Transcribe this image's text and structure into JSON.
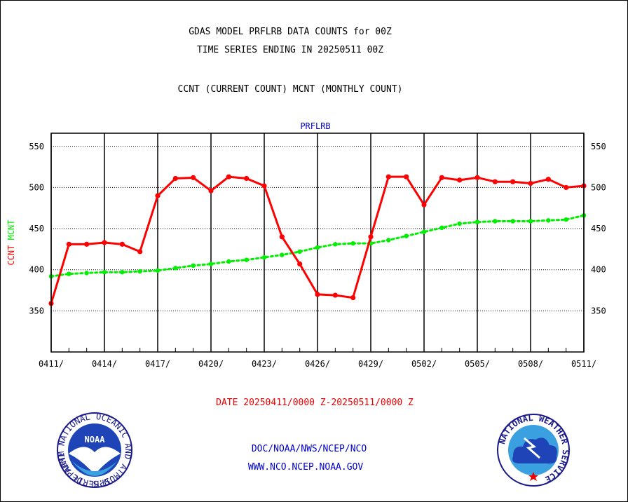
{
  "header": {
    "title_line1": "GDAS MODEL PRFLRB DATA COUNTS for 00Z",
    "title_line2": "TIME SERIES ENDING IN 20250511 00Z",
    "subtitle": "CCNT (CURRENT COUNT) MCNT (MONTHLY COUNT)"
  },
  "footer": {
    "date_range": "DATE 20250411/0000 Z-20250511/0000 Z",
    "org_path": "DOC/NOAA/NWS/NCEP/NCO",
    "website": "WWW.NCO.NCEP.NOAA.GOV"
  },
  "logos": {
    "noaa_text": "NOAA",
    "noaa_ring": "NATIONAL OCEANIC AND ATMOSPHERIC ADMINISTRATION",
    "noaa_ring_bottom": "U.S. DEPARTMENT OF COMMERCE",
    "nws_ring": "NATIONAL WEATHER SERVICE"
  },
  "colors": {
    "ccnt": "#ff0000",
    "mcnt": "#00ee00",
    "panel_title": "#0000cc",
    "footer_red": "#ee0000",
    "footer_blue": "#0000cc"
  },
  "chart_data": {
    "type": "line",
    "title": "PRFLRB",
    "ylabel_ccnt": "CCNT",
    "ylabel_mcnt": "MCNT",
    "ylim": [
      300,
      566
    ],
    "yticks": [
      350,
      400,
      450,
      500,
      550
    ],
    "xticks": [
      "0411/",
      "0414/",
      "0417/",
      "0420/",
      "0423/",
      "0426/",
      "0429/",
      "0502/",
      "0505/",
      "0508/",
      "0511/"
    ],
    "x_days": 30,
    "grid": true,
    "series": [
      {
        "name": "CCNT",
        "color": "#ff0000",
        "values": [
          359,
          431,
          431,
          433,
          431,
          422,
          490,
          511,
          512,
          496,
          513,
          511,
          502,
          440,
          407,
          370,
          369,
          366,
          440,
          513,
          513,
          479,
          512,
          509,
          512,
          507,
          507,
          505,
          510,
          500,
          502
        ]
      },
      {
        "name": "MCNT",
        "color": "#00ee00",
        "values": [
          392,
          395,
          396,
          397,
          397,
          398,
          399,
          402,
          405,
          407,
          410,
          412,
          415,
          418,
          422,
          427,
          431,
          432,
          432,
          436,
          441,
          446,
          451,
          456,
          458,
          459,
          459,
          459,
          460,
          461,
          466
        ]
      }
    ]
  }
}
